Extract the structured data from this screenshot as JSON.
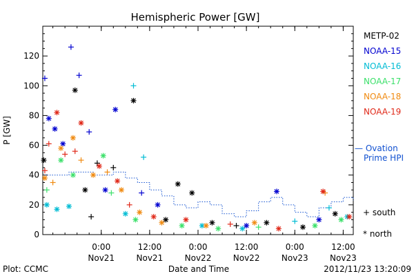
{
  "chart_data": {
    "type": "scatter",
    "title": "Hemispheric Power [GW]",
    "ylabel": "P [GW]",
    "xlabel": "Date and Time",
    "ylim": [
      0,
      140
    ],
    "yticks": [
      0,
      20,
      40,
      60,
      80,
      100,
      120
    ],
    "xlim": [
      "2012-11-20 09:30",
      "2012-11-23 14:30"
    ],
    "xticks": [
      {
        "t": "2012-11-21 00:00",
        "time": "0:00",
        "date": "Nov21"
      },
      {
        "t": "2012-11-21 12:00",
        "time": "12:00",
        "date": "Nov21"
      },
      {
        "t": "2012-11-22 00:00",
        "time": "0:00",
        "date": "Nov22"
      },
      {
        "t": "2012-11-22 12:00",
        "time": "12:00",
        "date": "Nov22"
      },
      {
        "t": "2012-11-23 00:00",
        "time": "0:00",
        "date": "Nov23"
      },
      {
        "t": "2012-11-23 12:00",
        "time": "12:00",
        "date": "Nov23"
      }
    ],
    "grid": false,
    "legend_position": "right",
    "series": [
      {
        "name": "METP-02",
        "color": "#000000",
        "points": [
          {
            "x": "2012-11-20 09:45",
            "y": 50,
            "m": "north"
          },
          {
            "x": "2012-11-20 17:30",
            "y": 97,
            "m": "north"
          },
          {
            "x": "2012-11-20 20:00",
            "y": 30,
            "m": "north"
          },
          {
            "x": "2012-11-20 21:30",
            "y": 12,
            "m": "south"
          },
          {
            "x": "2012-11-20 23:00",
            "y": 48,
            "m": "south"
          },
          {
            "x": "2012-11-21 03:00",
            "y": 45,
            "m": "south"
          },
          {
            "x": "2012-11-21 08:00",
            "y": 90,
            "m": "north"
          },
          {
            "x": "2012-11-21 16:00",
            "y": 10,
            "m": "north"
          },
          {
            "x": "2012-11-21 19:00",
            "y": 34,
            "m": "north"
          },
          {
            "x": "2012-11-21 22:30",
            "y": 28,
            "m": "north"
          },
          {
            "x": "2012-11-22 03:30",
            "y": 8,
            "m": "north"
          },
          {
            "x": "2012-11-22 09:30",
            "y": 6,
            "m": "south"
          },
          {
            "x": "2012-11-22 17:00",
            "y": 8,
            "m": "north"
          },
          {
            "x": "2012-11-23 02:00",
            "y": 5,
            "m": "north"
          },
          {
            "x": "2012-11-23 10:00",
            "y": 14,
            "m": "north"
          }
        ]
      },
      {
        "name": "NOAA-15",
        "color": "#0000d0",
        "points": [
          {
            "x": "2012-11-20 10:00",
            "y": 105,
            "m": "south"
          },
          {
            "x": "2012-11-20 11:00",
            "y": 78,
            "m": "north"
          },
          {
            "x": "2012-11-20 12:30",
            "y": 71,
            "m": "north"
          },
          {
            "x": "2012-11-20 14:30",
            "y": 61,
            "m": "north"
          },
          {
            "x": "2012-11-20 16:30",
            "y": 126,
            "m": "south"
          },
          {
            "x": "2012-11-20 18:30",
            "y": 107,
            "m": "south"
          },
          {
            "x": "2012-11-20 21:00",
            "y": 69,
            "m": "south"
          },
          {
            "x": "2012-11-21 03:30",
            "y": 84,
            "m": "north"
          },
          {
            "x": "2012-11-21 01:00",
            "y": 30,
            "m": "north"
          },
          {
            "x": "2012-11-21 10:00",
            "y": 28,
            "m": "south"
          },
          {
            "x": "2012-11-21 14:00",
            "y": 20,
            "m": "north"
          },
          {
            "x": "2012-11-22 19:30",
            "y": 29,
            "m": "north"
          },
          {
            "x": "2012-11-22 12:00",
            "y": 6,
            "m": "north"
          },
          {
            "x": "2012-11-23 06:00",
            "y": 10,
            "m": "north"
          }
        ]
      },
      {
        "name": "NOAA-16",
        "color": "#00bcd4",
        "points": [
          {
            "x": "2012-11-20 10:30",
            "y": 20,
            "m": "north"
          },
          {
            "x": "2012-11-20 13:00",
            "y": 17,
            "m": "north"
          },
          {
            "x": "2012-11-20 16:00",
            "y": 19,
            "m": "north"
          },
          {
            "x": "2012-11-21 08:00",
            "y": 100,
            "m": "south"
          },
          {
            "x": "2012-11-21 10:30",
            "y": 52,
            "m": "south"
          },
          {
            "x": "2012-11-21 06:00",
            "y": 14,
            "m": "north"
          },
          {
            "x": "2012-11-22 01:00",
            "y": 6,
            "m": "north"
          },
          {
            "x": "2012-11-22 11:00",
            "y": 4,
            "m": "north"
          },
          {
            "x": "2012-11-23 00:00",
            "y": 9,
            "m": "south"
          },
          {
            "x": "2012-11-23 08:30",
            "y": 18,
            "m": "south"
          },
          {
            "x": "2012-11-23 13:00",
            "y": 12,
            "m": "north"
          }
        ]
      },
      {
        "name": "NOAA-17",
        "color": "#3be06a",
        "points": [
          {
            "x": "2012-11-20 10:30",
            "y": 30,
            "m": "south"
          },
          {
            "x": "2012-11-20 14:00",
            "y": 50,
            "m": "north"
          },
          {
            "x": "2012-11-20 17:00",
            "y": 40,
            "m": "north"
          },
          {
            "x": "2012-11-21 00:30",
            "y": 53,
            "m": "north"
          },
          {
            "x": "2012-11-21 02:30",
            "y": 28,
            "m": "south"
          },
          {
            "x": "2012-11-21 08:30",
            "y": 10,
            "m": "north"
          },
          {
            "x": "2012-11-21 20:00",
            "y": 6,
            "m": "north"
          },
          {
            "x": "2012-11-22 05:00",
            "y": 4,
            "m": "north"
          },
          {
            "x": "2012-11-22 15:00",
            "y": 5,
            "m": "south"
          },
          {
            "x": "2012-11-23 05:00",
            "y": 6,
            "m": "north"
          },
          {
            "x": "2012-11-23 11:30",
            "y": 10,
            "m": "north"
          }
        ]
      },
      {
        "name": "NOAA-18",
        "color": "#f08a10",
        "points": [
          {
            "x": "2012-11-20 10:00",
            "y": 38,
            "m": "north"
          },
          {
            "x": "2012-11-20 12:00",
            "y": 35,
            "m": "south"
          },
          {
            "x": "2012-11-20 14:00",
            "y": 58,
            "m": "north"
          },
          {
            "x": "2012-11-20 17:00",
            "y": 65,
            "m": "north"
          },
          {
            "x": "2012-11-20 19:00",
            "y": 50,
            "m": "south"
          },
          {
            "x": "2012-11-20 22:00",
            "y": 40,
            "m": "north"
          },
          {
            "x": "2012-11-21 01:30",
            "y": 42,
            "m": "south"
          },
          {
            "x": "2012-11-21 05:00",
            "y": 30,
            "m": "north"
          },
          {
            "x": "2012-11-21 09:30",
            "y": 15,
            "m": "north"
          },
          {
            "x": "2012-11-21 15:00",
            "y": 8,
            "m": "north"
          },
          {
            "x": "2012-11-22 02:00",
            "y": 6,
            "m": "north"
          },
          {
            "x": "2012-11-22 14:00",
            "y": 8,
            "m": "north"
          },
          {
            "x": "2012-11-23 07:30",
            "y": 28,
            "m": "south"
          }
        ]
      },
      {
        "name": "NOAA-19",
        "color": "#e02818",
        "points": [
          {
            "x": "2012-11-20 10:00",
            "y": 43,
            "m": "south"
          },
          {
            "x": "2012-11-20 11:00",
            "y": 61,
            "m": "south"
          },
          {
            "x": "2012-11-20 13:00",
            "y": 82,
            "m": "north"
          },
          {
            "x": "2012-11-20 15:00",
            "y": 54,
            "m": "south"
          },
          {
            "x": "2012-11-20 17:30",
            "y": 56,
            "m": "south"
          },
          {
            "x": "2012-11-20 19:00",
            "y": 75,
            "m": "north"
          },
          {
            "x": "2012-11-20 23:30",
            "y": 46,
            "m": "north"
          },
          {
            "x": "2012-11-21 04:00",
            "y": 36,
            "m": "north"
          },
          {
            "x": "2012-11-21 07:00",
            "y": 20,
            "m": "south"
          },
          {
            "x": "2012-11-21 13:00",
            "y": 12,
            "m": "north"
          },
          {
            "x": "2012-11-21 21:00",
            "y": 10,
            "m": "north"
          },
          {
            "x": "2012-11-22 08:00",
            "y": 7,
            "m": "south"
          },
          {
            "x": "2012-11-22 20:00",
            "y": 4,
            "m": "north"
          },
          {
            "x": "2012-11-23 07:00",
            "y": 29,
            "m": "north"
          },
          {
            "x": "2012-11-23 13:30",
            "y": 12,
            "m": "north"
          }
        ]
      }
    ],
    "ovation": {
      "name": "— Ovation\nPrime HPI",
      "label_line1": "— Ovation",
      "label_line2": "Prime HPI",
      "color": "#1050d0",
      "style": "dotted",
      "points": [
        {
          "x": "2012-11-20 10:00",
          "y": 40
        },
        {
          "x": "2012-11-20 16:00",
          "y": 42
        },
        {
          "x": "2012-11-20 22:00",
          "y": 40
        },
        {
          "x": "2012-11-21 03:00",
          "y": 42
        },
        {
          "x": "2012-11-21 06:00",
          "y": 38
        },
        {
          "x": "2012-11-21 09:00",
          "y": 35
        },
        {
          "x": "2012-11-21 12:00",
          "y": 30
        },
        {
          "x": "2012-11-21 15:00",
          "y": 26
        },
        {
          "x": "2012-11-21 18:00",
          "y": 20
        },
        {
          "x": "2012-11-21 21:00",
          "y": 18
        },
        {
          "x": "2012-11-22 00:00",
          "y": 22
        },
        {
          "x": "2012-11-22 03:00",
          "y": 20
        },
        {
          "x": "2012-11-22 06:00",
          "y": 14
        },
        {
          "x": "2012-11-22 09:00",
          "y": 12
        },
        {
          "x": "2012-11-22 12:00",
          "y": 16
        },
        {
          "x": "2012-11-22 15:00",
          "y": 22
        },
        {
          "x": "2012-11-22 18:00",
          "y": 25
        },
        {
          "x": "2012-11-22 21:00",
          "y": 20
        },
        {
          "x": "2012-11-23 00:00",
          "y": 15
        },
        {
          "x": "2012-11-23 03:00",
          "y": 12
        },
        {
          "x": "2012-11-23 06:00",
          "y": 18
        },
        {
          "x": "2012-11-23 09:00",
          "y": 22
        },
        {
          "x": "2012-11-23 12:00",
          "y": 25
        },
        {
          "x": "2012-11-23 14:30",
          "y": 23
        }
      ]
    },
    "marker_legend": {
      "south": "+ south",
      "north": "* north"
    }
  },
  "footer": {
    "plot_label": "Plot: CCMC",
    "timestamp": "2012/11/23 13:20:09"
  }
}
